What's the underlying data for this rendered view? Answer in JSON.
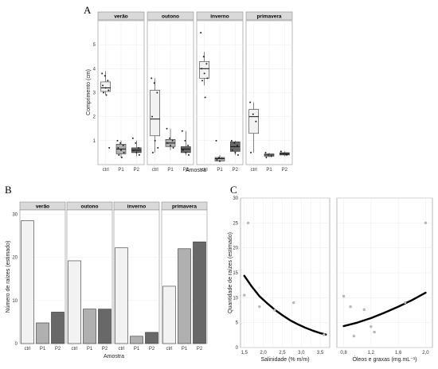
{
  "panel_labels": [
    "A",
    "B",
    "C"
  ],
  "colors": {
    "ctrl": "#f2f2f2",
    "P1": "#b0b0b0",
    "P2": "#686868",
    "strip": "#d9d9d9",
    "curve": "#000000",
    "point": "#555555",
    "point_light": "#bdbdbd"
  },
  "chart_data": [
    {
      "id": "A",
      "type": "box",
      "xlabel": "Amostra",
      "ylabel": "Comprimento (cm)",
      "ylim": [
        0,
        6
      ],
      "yticks": [
        1,
        2,
        3,
        4,
        5
      ],
      "categories": [
        "ctrl",
        "P1",
        "P2"
      ],
      "grid": true,
      "facets": [
        {
          "name": "verão",
          "boxes": [
            {
              "category": "ctrl",
              "min": 2.9,
              "q1": 3.05,
              "median": 3.2,
              "q3": 3.45,
              "max": 3.9,
              "points": [
                3.8,
                3.7,
                3.5,
                3.3,
                3.2,
                3.1,
                3.0,
                2.9,
                0.7
              ]
            },
            {
              "category": "P1",
              "min": 0.3,
              "q1": 0.45,
              "median": 0.65,
              "q3": 0.85,
              "max": 1.0,
              "points": [
                1.0,
                0.9,
                0.8,
                0.7,
                0.6,
                0.5,
                0.4,
                0.3
              ]
            },
            {
              "category": "P2",
              "min": 0.35,
              "q1": 0.5,
              "median": 0.6,
              "q3": 0.7,
              "max": 1.0,
              "points": [
                1.1,
                0.9,
                0.7,
                0.6,
                0.5,
                0.4
              ]
            }
          ]
        },
        {
          "name": "outono",
          "boxes": [
            {
              "category": "ctrl",
              "min": 0.5,
              "q1": 1.2,
              "median": 1.9,
              "q3": 3.1,
              "max": 3.6,
              "points": [
                3.6,
                3.4,
                3.0,
                2.0,
                1.0,
                0.7,
                0.5
              ]
            },
            {
              "category": "P1",
              "min": 0.6,
              "q1": 0.75,
              "median": 0.9,
              "q3": 1.05,
              "max": 1.5,
              "points": [
                1.5,
                1.1,
                1.0,
                0.9,
                0.8,
                0.7
              ]
            },
            {
              "category": "P2",
              "min": 0.4,
              "q1": 0.5,
              "median": 0.65,
              "q3": 0.75,
              "max": 1.4,
              "points": [
                1.4,
                1.0,
                0.8,
                0.6,
                0.5,
                0.4
              ]
            }
          ]
        },
        {
          "name": "inverno",
          "boxes": [
            {
              "category": "ctrl",
              "min": 3.3,
              "q1": 3.6,
              "median": 4.0,
              "q3": 4.3,
              "max": 4.7,
              "points": [
                5.5,
                4.5,
                4.2,
                4.0,
                3.8,
                3.6,
                3.5,
                2.8
              ]
            },
            {
              "category": "P1",
              "min": 0.1,
              "q1": 0.15,
              "median": 0.25,
              "q3": 0.3,
              "max": 0.4,
              "points": [
                1.0,
                0.3,
                0.25,
                0.2,
                0.15
              ]
            },
            {
              "category": "P2",
              "min": 0.4,
              "q1": 0.55,
              "median": 0.75,
              "q3": 0.95,
              "max": 1.0,
              "points": [
                1.0,
                0.9,
                0.8,
                0.6,
                0.5,
                0.4
              ]
            }
          ]
        },
        {
          "name": "primavera",
          "boxes": [
            {
              "category": "ctrl",
              "min": 0.5,
              "q1": 1.3,
              "median": 2.0,
              "q3": 2.3,
              "max": 2.6,
              "points": [
                2.6,
                2.1,
                1.8,
                0.5
              ]
            },
            {
              "category": "P1",
              "min": 0.3,
              "q1": 0.35,
              "median": 0.4,
              "q3": 0.45,
              "max": 0.5,
              "points": [
                0.5,
                0.4,
                0.35,
                0.3
              ]
            },
            {
              "category": "P2",
              "min": 0.35,
              "q1": 0.4,
              "median": 0.45,
              "q3": 0.5,
              "max": 0.55,
              "points": [
                0.55,
                0.45,
                0.4
              ]
            }
          ]
        }
      ]
    },
    {
      "id": "B",
      "type": "bar",
      "xlabel": "Amostra",
      "ylabel": "Número de raízes (estimado)",
      "ylim": [
        0,
        31
      ],
      "yticks": [
        0,
        10,
        20,
        30
      ],
      "categories": [
        "ctrl",
        "P1",
        "P2"
      ],
      "grid": true,
      "facets": [
        {
          "name": "verão",
          "values": [
            28.5,
            4.8,
            7.3
          ]
        },
        {
          "name": "outono",
          "values": [
            19.2,
            8.0,
            8.0
          ]
        },
        {
          "name": "inverno",
          "values": [
            22.2,
            1.7,
            2.6
          ]
        },
        {
          "name": "primavera",
          "values": [
            13.3,
            22.0,
            23.6
          ]
        }
      ]
    },
    {
      "id": "C",
      "type": "scatter",
      "ylabel": "Quantidade de raízes (estimado)",
      "ylim": [
        0,
        30
      ],
      "yticks": [
        0,
        5,
        10,
        15,
        20,
        25,
        30
      ],
      "grid": true,
      "facets": [
        {
          "xlabel": "Salinidade (% m/m)",
          "xlim": [
            1.4,
            3.75
          ],
          "xticks": [
            1.5,
            1.9,
            2.3,
            2.7,
            3.1,
            3.5
          ],
          "tick_labels": [
            "1,5",
            "",
            "2,0",
            "",
            "2,5",
            "",
            "3,0",
            "",
            "3,5"
          ],
          "tick_values": [
            1.5,
            1.75,
            2.0,
            2.25,
            2.5,
            2.75,
            3.0,
            3.25,
            3.5
          ],
          "points": [
            [
              1.5,
              10.5
            ],
            [
              1.6,
              25.0
            ],
            [
              1.9,
              8.2
            ],
            [
              2.3,
              7.5
            ],
            [
              2.8,
              9.0
            ],
            [
              3.6,
              2.6
            ]
          ],
          "fit": [
            [
              1.5,
              14.4
            ],
            [
              1.7,
              12.2
            ],
            [
              1.9,
              10.3
            ],
            [
              2.1,
              8.9
            ],
            [
              2.3,
              7.6
            ],
            [
              2.5,
              6.5
            ],
            [
              2.7,
              5.5
            ],
            [
              2.9,
              4.7
            ],
            [
              3.1,
              4.0
            ],
            [
              3.3,
              3.4
            ],
            [
              3.5,
              2.9
            ],
            [
              3.65,
              2.6
            ]
          ]
        },
        {
          "xlabel": "Óleos e graxas (mg.mL⁻¹)",
          "xlim": [
            0.7,
            2.1
          ],
          "tick_labels": [
            "0,8",
            "1,2",
            "1,6",
            "2,0"
          ],
          "tick_values": [
            0.8,
            1.2,
            1.6,
            2.0
          ],
          "points": [
            [
              0.8,
              10.3
            ],
            [
              0.9,
              8.2
            ],
            [
              0.95,
              2.3
            ],
            [
              1.1,
              7.6
            ],
            [
              1.2,
              4.2
            ],
            [
              1.25,
              3.1
            ],
            [
              1.7,
              9.0
            ],
            [
              2.0,
              25.0
            ]
          ],
          "fit": [
            [
              0.8,
              4.3
            ],
            [
              1.0,
              5.0
            ],
            [
              1.2,
              5.9
            ],
            [
              1.4,
              7.0
            ],
            [
              1.6,
              8.2
            ],
            [
              1.8,
              9.5
            ],
            [
              2.0,
              11.0
            ]
          ]
        }
      ]
    }
  ]
}
